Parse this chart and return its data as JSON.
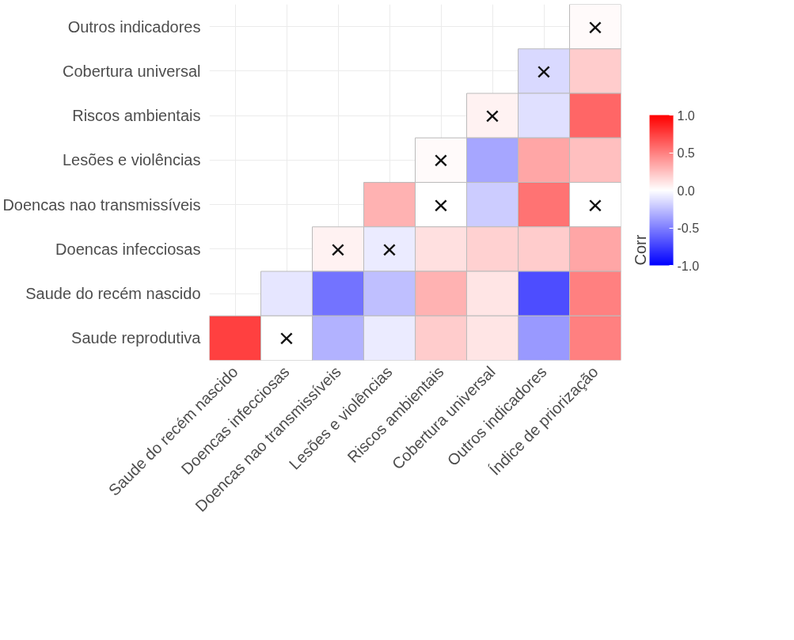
{
  "chart_data": {
    "type": "heatmap",
    "categories": [
      "Saude do recém nascido",
      "Doencas infecciosas",
      "Doencas nao transmissíveis",
      "Lesões e violências",
      "Riscos ambientais",
      "Cobertura universal",
      "Outros indicadores",
      "Índice de priorização"
    ],
    "y_categories": [
      "Outros indicadores",
      "Cobertura universal",
      "Riscos ambientais",
      "Lesões e violências",
      "Doencas nao transmissíveis",
      "Doencas infecciosas",
      "Saude do recém nascido",
      "Saude reprodutiva"
    ],
    "cells": [
      [
        null,
        null,
        null,
        null,
        null,
        null,
        null,
        0.02
      ],
      [
        null,
        null,
        null,
        null,
        null,
        null,
        -0.15,
        0.2
      ],
      [
        null,
        null,
        null,
        null,
        null,
        0.05,
        -0.12,
        0.6
      ],
      [
        null,
        null,
        null,
        null,
        0.02,
        -0.35,
        0.35,
        0.25
      ],
      [
        null,
        null,
        null,
        0.3,
        0.0,
        -0.2,
        0.55,
        0.0
      ],
      [
        null,
        null,
        0.05,
        -0.08,
        0.12,
        0.18,
        0.2,
        0.35
      ],
      [
        null,
        -0.1,
        -0.55,
        -0.25,
        0.3,
        0.1,
        -0.7,
        0.5
      ],
      [
        0.75,
        0.0,
        -0.3,
        -0.08,
        0.2,
        0.1,
        -0.4,
        0.5
      ]
    ],
    "cell_labels": [
      [
        null,
        null,
        null,
        null,
        null,
        null,
        null,
        "×"
      ],
      [
        null,
        null,
        null,
        null,
        null,
        null,
        "×",
        null
      ],
      [
        null,
        null,
        null,
        null,
        null,
        "×",
        null,
        null
      ],
      [
        null,
        null,
        null,
        null,
        "×",
        null,
        null,
        null
      ],
      [
        null,
        null,
        null,
        null,
        "×",
        null,
        null,
        "×"
      ],
      [
        null,
        null,
        "×",
        "×",
        null,
        null,
        null,
        null
      ],
      [
        null,
        null,
        null,
        null,
        null,
        null,
        null,
        null
      ],
      [
        null,
        "×",
        null,
        null,
        null,
        null,
        null,
        null
      ]
    ],
    "clim": [
      -1,
      1
    ],
    "cticks": [
      {
        "value": -1,
        "label": "-1.0"
      },
      {
        "value": -0.5,
        "label": "-0.5"
      },
      {
        "value": 0,
        "label": "0.0"
      },
      {
        "value": 0.5,
        "label": "0.5"
      },
      {
        "value": 1,
        "label": "1.0"
      }
    ],
    "clabel": "Corr",
    "grid": true
  }
}
